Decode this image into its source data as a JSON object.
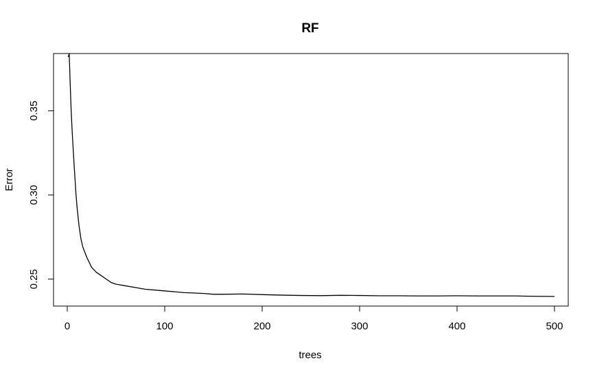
{
  "chart_data": {
    "type": "line",
    "title": "RF",
    "xlabel": "trees",
    "ylabel": "Error",
    "xlim": [
      0,
      500
    ],
    "ylim": [
      0.234,
      0.384
    ],
    "x_ticks": [
      0,
      100,
      200,
      300,
      400,
      500
    ],
    "x_tick_labels": [
      "0",
      "100",
      "200",
      "300",
      "400",
      "500"
    ],
    "y_ticks": [
      0.25,
      0.3,
      0.35
    ],
    "y_tick_labels": [
      "0.25",
      "0.30",
      "0.35"
    ],
    "grid": false,
    "legend": "none",
    "series": [
      {
        "color": "#000000",
        "x": [
          1,
          2,
          3,
          4,
          5,
          6,
          7,
          8,
          9,
          10,
          12,
          14,
          16,
          18,
          20,
          25,
          30,
          35,
          40,
          45,
          50,
          60,
          70,
          80,
          90,
          100,
          120,
          140,
          150,
          160,
          180,
          200,
          220,
          240,
          260,
          280,
          300,
          320,
          340,
          360,
          380,
          400,
          420,
          440,
          460,
          480,
          500
        ],
        "values": [
          0.382,
          0.384,
          0.366,
          0.35,
          0.338,
          0.328,
          0.318,
          0.309,
          0.3,
          0.293,
          0.282,
          0.274,
          0.269,
          0.266,
          0.263,
          0.257,
          0.254,
          0.252,
          0.25,
          0.248,
          0.247,
          0.246,
          0.245,
          0.244,
          0.2435,
          0.243,
          0.242,
          0.2415,
          0.241,
          0.241,
          0.2412,
          0.2408,
          0.2405,
          0.2403,
          0.2402,
          0.2404,
          0.2403,
          0.2401,
          0.2401,
          0.24,
          0.24,
          0.2401,
          0.24,
          0.24,
          0.24,
          0.2398,
          0.2397
        ]
      }
    ]
  }
}
